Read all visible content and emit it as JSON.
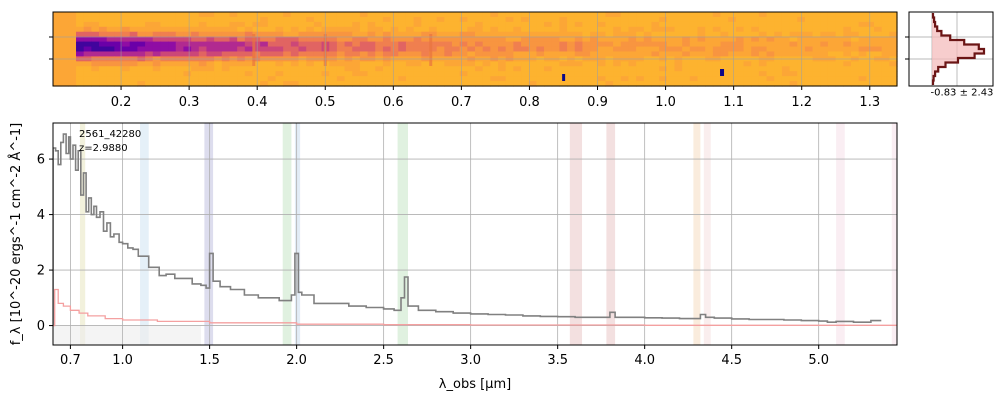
{
  "chart_data": [
    {
      "type": "heatmap",
      "panel": "2d-spectrum",
      "xticks": [
        "0.2",
        "0.3",
        "0.4",
        "0.5",
        "0.6",
        "0.7",
        "0.8",
        "0.9",
        "1.0",
        "1.1",
        "1.2",
        "1.3"
      ],
      "xlim": [
        0.1,
        1.34
      ],
      "colormap": "plasma",
      "grid": true
    },
    {
      "type": "area",
      "panel": "spatial-profile",
      "label": "-0.83 ± 2.43",
      "profile": [
        0.02,
        0.04,
        0.06,
        0.1,
        0.18,
        0.35,
        0.62,
        0.9,
        1.0,
        0.82,
        0.5,
        0.26,
        0.12,
        0.06,
        0.03,
        0.02
      ],
      "fill_color": "#f4bcbc",
      "line_color": "#6b1515"
    },
    {
      "type": "line",
      "panel": "1d-spectrum",
      "annotation": [
        "2561_42280",
        "z=2.9880"
      ],
      "ylabel": "f_λ [10^-20 ergs^-1 cm^-2 Å^-1]",
      "xlabel": "λ_obs [μm]",
      "xlim": [
        0.6,
        5.45
      ],
      "ylim": [
        -0.7,
        7.3
      ],
      "xticks": [
        "0.7",
        "1.0",
        "1.5",
        "2.0",
        "2.5",
        "3.0",
        "3.5",
        "4.0",
        "4.5",
        "5.0"
      ],
      "yticks": [
        "0",
        "2",
        "4",
        "6"
      ],
      "grid": true,
      "series": [
        {
          "color": "#808080",
          "x": [
            0.6,
            0.615,
            0.63,
            0.645,
            0.66,
            0.675,
            0.69,
            0.7,
            0.715,
            0.73,
            0.745,
            0.76,
            0.775,
            0.79,
            0.805,
            0.82,
            0.835,
            0.85,
            0.87,
            0.89,
            0.91,
            0.93,
            0.95,
            0.98,
            1.0,
            1.03,
            1.06,
            1.09,
            1.12,
            1.15,
            1.18,
            1.21,
            1.25,
            1.3,
            1.35,
            1.4,
            1.45,
            1.48,
            1.5,
            1.52,
            1.56,
            1.62,
            1.7,
            1.78,
            1.85,
            1.9,
            1.94,
            1.97,
            1.99,
            2.01,
            2.03,
            2.1,
            2.2,
            2.3,
            2.4,
            2.5,
            2.56,
            2.6,
            2.62,
            2.64,
            2.7,
            2.8,
            2.9,
            3.0,
            3.1,
            3.2,
            3.3,
            3.4,
            3.5,
            3.6,
            3.7,
            3.77,
            3.8,
            3.83,
            3.9,
            4.0,
            4.1,
            4.2,
            4.3,
            4.32,
            4.35,
            4.4,
            4.5,
            4.6,
            4.7,
            4.8,
            4.9,
            5.0,
            5.05,
            5.1,
            5.2,
            5.3,
            5.36
          ],
          "y": [
            6.4,
            6.3,
            5.8,
            6.6,
            6.9,
            6.2,
            6.8,
            6.0,
            6.5,
            5.6,
            6.3,
            4.7,
            5.5,
            4.1,
            4.6,
            4.0,
            4.3,
            3.9,
            4.1,
            3.4,
            3.7,
            3.2,
            3.3,
            3.0,
            2.95,
            2.8,
            2.75,
            2.5,
            2.5,
            2.1,
            2.1,
            1.8,
            1.85,
            1.7,
            1.7,
            1.5,
            1.45,
            1.35,
            2.6,
            1.6,
            1.4,
            1.3,
            1.1,
            1.0,
            1.0,
            0.9,
            0.9,
            1.1,
            2.6,
            1.2,
            1.1,
            0.8,
            0.8,
            0.7,
            0.65,
            0.6,
            0.55,
            1.0,
            1.75,
            0.7,
            0.55,
            0.5,
            0.45,
            0.42,
            0.4,
            0.38,
            0.35,
            0.33,
            0.32,
            0.3,
            0.3,
            0.3,
            0.48,
            0.3,
            0.3,
            0.28,
            0.27,
            0.25,
            0.25,
            0.4,
            0.3,
            0.27,
            0.24,
            0.22,
            0.22,
            0.2,
            0.18,
            0.16,
            0.12,
            0.15,
            0.12,
            0.18,
            0.18
          ]
        },
        {
          "color": "#f4a0a0",
          "x": [
            0.6,
            0.61,
            0.63,
            0.66,
            0.7,
            0.75,
            0.8,
            0.9,
            1.0,
            1.2,
            1.5,
            2.0,
            2.5,
            3.0,
            4.0,
            5.0,
            5.45
          ],
          "y": [
            0.0,
            1.3,
            0.8,
            0.7,
            0.55,
            0.45,
            0.35,
            0.25,
            0.2,
            0.15,
            0.1,
            0.05,
            0.03,
            0.02,
            0.01,
            0.01,
            0.01
          ]
        }
      ],
      "bands": [
        {
          "x": [
            0.755,
            0.785
          ],
          "color": "#d4d08a"
        },
        {
          "x": [
            1.1,
            1.15
          ],
          "color": "#a9cde8"
        },
        {
          "x": [
            1.47,
            1.52
          ],
          "color": "#9090c8"
        },
        {
          "x": [
            1.92,
            1.97
          ],
          "color": "#98d098"
        },
        {
          "x": [
            1.99,
            2.02
          ],
          "color": "#a0c0e0"
        },
        {
          "x": [
            2.58,
            2.64
          ],
          "color": "#98d098"
        },
        {
          "x": [
            3.57,
            3.64
          ],
          "color": "#d89898"
        },
        {
          "x": [
            3.78,
            3.83
          ],
          "color": "#d89898"
        },
        {
          "x": [
            4.28,
            4.32
          ],
          "color": "#f0c090"
        },
        {
          "x": [
            4.34,
            4.38
          ],
          "color": "#f0c8c8"
        },
        {
          "x": [
            5.1,
            5.15
          ],
          "color": "#f0c8d8"
        },
        {
          "x": [
            5.42,
            5.45
          ],
          "color": "#f0c8d8"
        }
      ]
    }
  ]
}
